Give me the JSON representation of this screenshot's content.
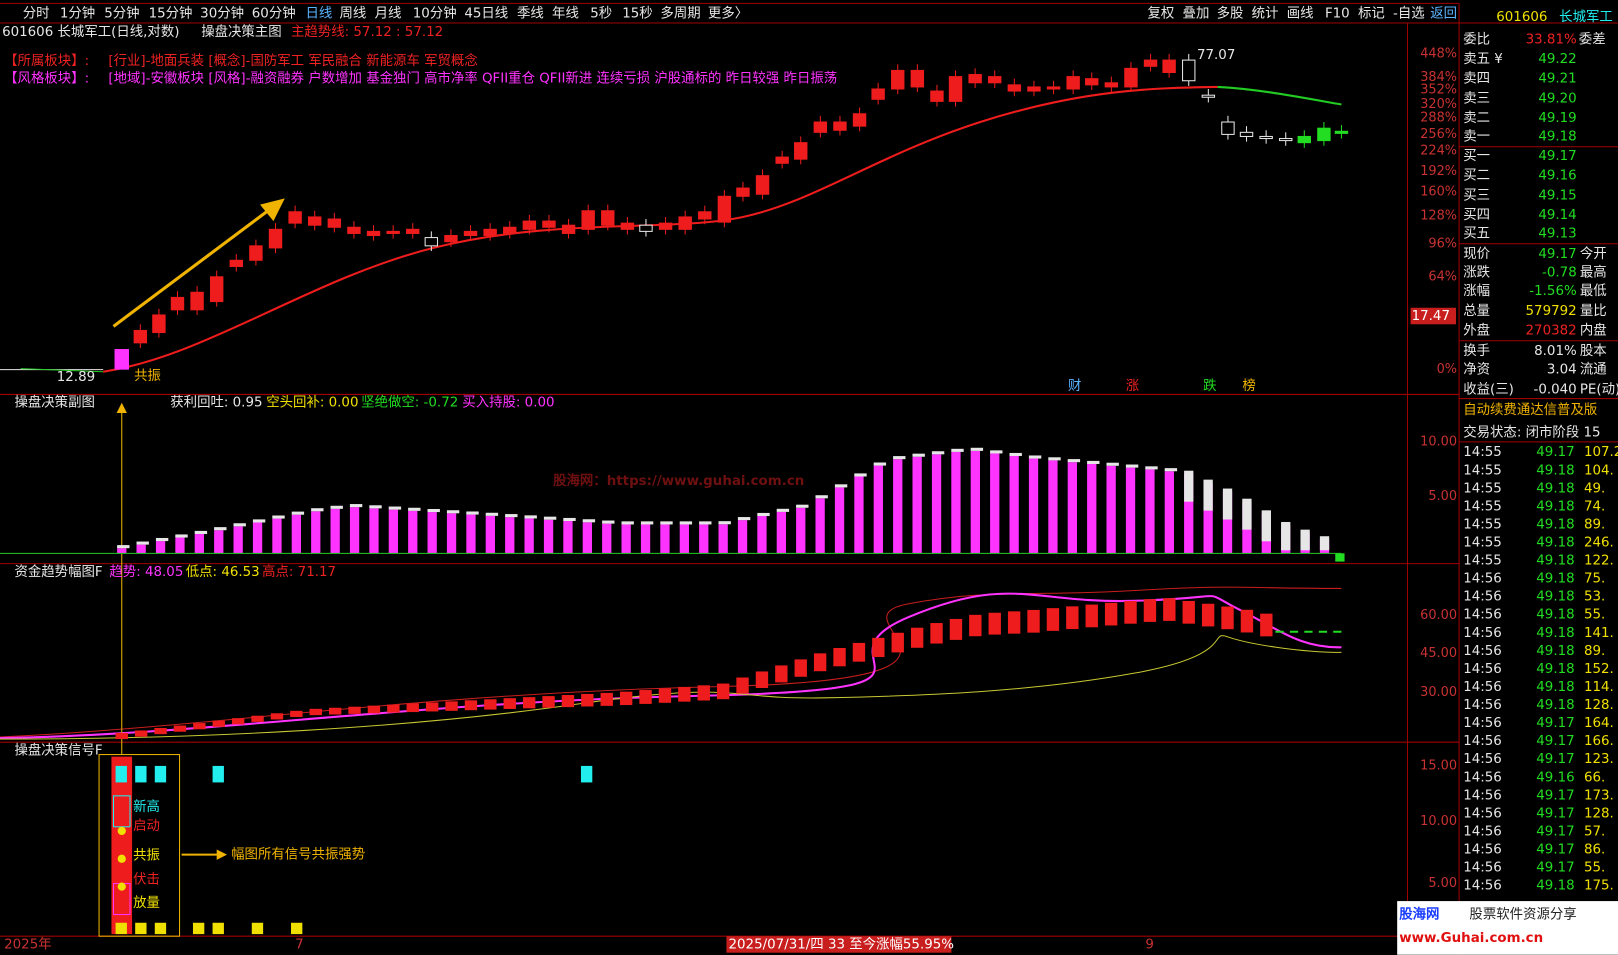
{
  "toolbar": {
    "periods": [
      "分时",
      "1分钟",
      "5分钟",
      "15分钟",
      "30分钟",
      "60分钟",
      "日线",
      "周线",
      "月线",
      "10分钟",
      "45日线",
      "季线",
      "年线",
      "5秒",
      "15秒",
      "多周期",
      "更多〉"
    ],
    "tools": [
      "复权",
      "叠加",
      "多股",
      "统计",
      "画线",
      "F10",
      "标记",
      "-自选",
      "返回"
    ]
  },
  "main_chart": {
    "title": "601606 长城军工(日线,对数)",
    "indicator": "操盘决策主图",
    "trend_line": "主趋势线: 57.12 : 57.12",
    "sectors": [
      {
        "label": "【所属板块】:",
        "text": "[行业]-地面兵装 [概念]-国防军工 军民融合 新能源车 军贸概念"
      },
      {
        "label": "【风格板块】:",
        "text": "[地域]-安徽板块 [风格]-融资融券 户数增加 基金独门 高市净率 QFII重仓 QFII新进 连续亏损 沪股通标的 昨日较强 昨日振荡"
      }
    ],
    "axis_labels": [
      "448%",
      "384%",
      "352%",
      "320%",
      "288%",
      "256%",
      "224%",
      "192%",
      "160%",
      "128%",
      "96%",
      "64%",
      "0%"
    ],
    "high_label": "77.07",
    "low_label": "12.89",
    "signal_label": "共振",
    "price_tag": "17.47",
    "event_tags": [
      "财",
      "涨",
      "跌",
      "榜"
    ]
  },
  "sub_chart_1": {
    "title": "操盘决策副图",
    "readouts": [
      "获利回吐: 0.95",
      "空头回补: 0.00",
      "坚绝做空: -0.72",
      "买入持股: 0.00"
    ],
    "axis_labels": [
      "10.00",
      "5.00"
    ]
  },
  "watermark": "股海网：https://www.guhai.com.cn",
  "sub_chart_2": {
    "title": "资金趋势幅图F",
    "readouts": [
      "趋势: 48.05",
      "低点: 46.53",
      "高点: 71.17"
    ],
    "axis_labels": [
      "60.00",
      "45.00",
      "30.00"
    ]
  },
  "sub_chart_3": {
    "title": "操盘决策信号F",
    "axis_labels": [
      "15.00",
      "10.00",
      "5.00"
    ],
    "signals": [
      "新高",
      "启动",
      "共振",
      "伏击",
      "放量"
    ],
    "annotation": "幅图所有信号共振强势"
  },
  "time_axis": {
    "labels": [
      "2025年",
      "7",
      "9"
    ],
    "cursor": "2025/07/31/四 33 至今涨幅55.95%"
  },
  "quote_panel": {
    "code": "601606",
    "name": "长城军工",
    "ratio_label": "委比",
    "ratio": "33.81%",
    "diff_label": "委差",
    "asks": [
      {
        "label": "卖五 ¥",
        "price": "49.22"
      },
      {
        "label": "卖四",
        "price": "49.21"
      },
      {
        "label": "卖三",
        "price": "49.20"
      },
      {
        "label": "卖二",
        "price": "49.19"
      },
      {
        "label": "卖一",
        "price": "49.18"
      }
    ],
    "bids": [
      {
        "label": "买一",
        "price": "49.17"
      },
      {
        "label": "买二",
        "price": "49.16"
      },
      {
        "label": "买三",
        "price": "49.15"
      },
      {
        "label": "买四",
        "price": "49.14"
      },
      {
        "label": "买五",
        "price": "49.13"
      }
    ],
    "stats": [
      {
        "label": "现价",
        "value": "49.17",
        "right": "今开"
      },
      {
        "label": "涨跌",
        "value": "-0.78",
        "right": "最高"
      },
      {
        "label": "涨幅",
        "value": "-1.56%",
        "right": "最低"
      },
      {
        "label": "总量",
        "value": "579792",
        "right": "量比"
      },
      {
        "label": "外盘",
        "value": "270382",
        "right": "内盘"
      },
      {
        "label": "换手",
        "value": "8.01%",
        "right": "股本"
      },
      {
        "label": "净资",
        "value": "3.04",
        "right": "流通"
      },
      {
        "label": "收益(三)",
        "value": "-0.040",
        "right": "PE(动)"
      }
    ],
    "notice": "自动续费通达信普及版",
    "status": "交易状态: 闭市阶段 15",
    "ticks": [
      [
        "14:55",
        "49.17",
        "107.2"
      ],
      [
        "14:55",
        "49.18",
        "104."
      ],
      [
        "14:55",
        "49.18",
        "49."
      ],
      [
        "14:55",
        "49.18",
        "74."
      ],
      [
        "14:55",
        "49.18",
        "89."
      ],
      [
        "14:55",
        "49.18",
        "246."
      ],
      [
        "14:55",
        "49.18",
        "122."
      ],
      [
        "14:56",
        "49.18",
        "75."
      ],
      [
        "14:56",
        "49.18",
        "53."
      ],
      [
        "14:56",
        "49.18",
        "55."
      ],
      [
        "14:56",
        "49.18",
        "141."
      ],
      [
        "14:56",
        "49.18",
        "89."
      ],
      [
        "14:56",
        "49.18",
        "152."
      ],
      [
        "14:56",
        "49.18",
        "114."
      ],
      [
        "14:56",
        "49.18",
        "128."
      ],
      [
        "14:56",
        "49.17",
        "164."
      ],
      [
        "14:56",
        "49.17",
        "166."
      ],
      [
        "14:56",
        "49.17",
        "123."
      ],
      [
        "14:56",
        "49.16",
        "66."
      ],
      [
        "14:56",
        "49.17",
        "173."
      ],
      [
        "14:56",
        "49.17",
        "128."
      ],
      [
        "14:56",
        "49.17",
        "57."
      ],
      [
        "14:56",
        "49.17",
        "86."
      ],
      [
        "14:56",
        "49.17",
        "55."
      ],
      [
        "14:56",
        "49.18",
        "175."
      ]
    ]
  },
  "logo": {
    "brand": "股海网",
    "slogan": "股票软件资源分享",
    "url": "www.Guhai.com.cn"
  }
}
